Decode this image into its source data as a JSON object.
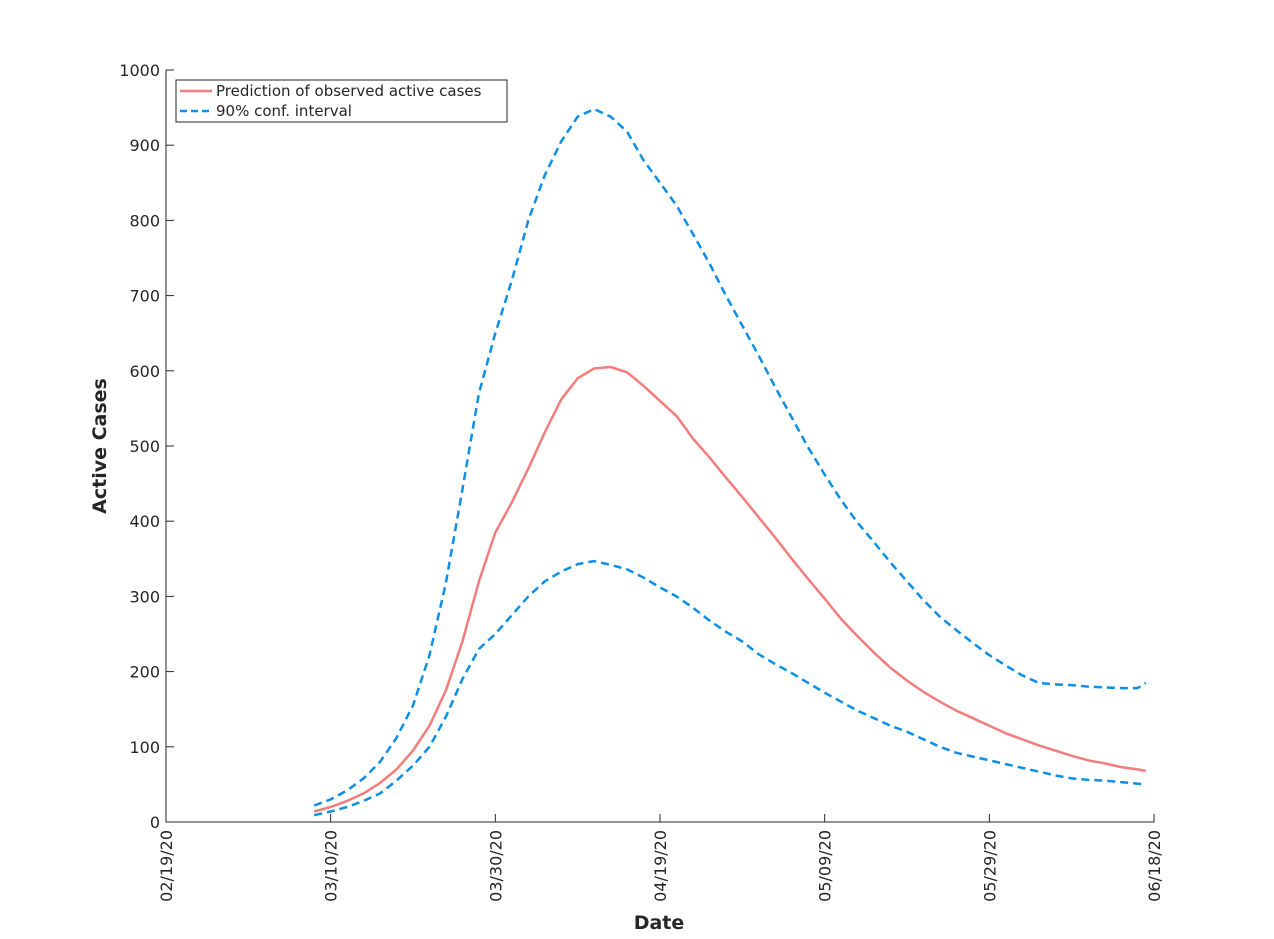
{
  "chart_data": {
    "type": "line",
    "title": "",
    "xlabel": "Date",
    "ylabel": "Active Cases",
    "ylim": [
      0,
      1000
    ],
    "xlim": [
      "02/19/20",
      "06/18/20"
    ],
    "yticks": [
      "0",
      "100",
      "200",
      "300",
      "400",
      "500",
      "600",
      "700",
      "800",
      "900",
      "1000"
    ],
    "xticks": [
      {
        "date": "2020-02-19",
        "label": "02/19/20"
      },
      {
        "date": "2020-03-10",
        "label": "03/10/20"
      },
      {
        "date": "2020-03-30",
        "label": "03/30/20"
      },
      {
        "date": "2020-04-19",
        "label": "04/19/20"
      },
      {
        "date": "2020-05-09",
        "label": "05/09/20"
      },
      {
        "date": "2020-05-29",
        "label": "05/29/20"
      },
      {
        "date": "2020-06-18",
        "label": "06/18/20"
      }
    ],
    "grid": false,
    "legend_position": "top-left",
    "x_dates": [
      "2020-03-08",
      "2020-03-10",
      "2020-03-12",
      "2020-03-14",
      "2020-03-16",
      "2020-03-18",
      "2020-03-20",
      "2020-03-22",
      "2020-03-24",
      "2020-03-26",
      "2020-03-28",
      "2020-03-30",
      "2020-04-01",
      "2020-04-03",
      "2020-04-05",
      "2020-04-07",
      "2020-04-09",
      "2020-04-11",
      "2020-04-13",
      "2020-04-15",
      "2020-04-17",
      "2020-04-19",
      "2020-04-21",
      "2020-04-23",
      "2020-04-25",
      "2020-04-27",
      "2020-04-29",
      "2020-05-01",
      "2020-05-03",
      "2020-05-05",
      "2020-05-07",
      "2020-05-09",
      "2020-05-11",
      "2020-05-13",
      "2020-05-15",
      "2020-05-17",
      "2020-05-19",
      "2020-05-21",
      "2020-05-23",
      "2020-05-25",
      "2020-05-27",
      "2020-05-29",
      "2020-05-31",
      "2020-06-02",
      "2020-06-04",
      "2020-06-06",
      "2020-06-08",
      "2020-06-10",
      "2020-06-12",
      "2020-06-14",
      "2020-06-16",
      "2020-06-17"
    ],
    "series": [
      {
        "name": "Prediction of observed active cases",
        "color": "#f47c7c",
        "style": "solid",
        "values": [
          14,
          20,
          28,
          38,
          52,
          70,
          95,
          128,
          175,
          240,
          320,
          385,
          425,
          470,
          518,
          562,
          590,
          603,
          605,
          598,
          580,
          560,
          540,
          510,
          485,
          458,
          432,
          405,
          378,
          350,
          323,
          297,
          270,
          247,
          225,
          205,
          188,
          173,
          160,
          148,
          138,
          128,
          118,
          110,
          102,
          95,
          88,
          82,
          78,
          73,
          70,
          68
        ]
      },
      {
        "name": "90% conf. interval",
        "color": "#0b8fe8",
        "style": "dashed",
        "values": [
          22,
          30,
          42,
          58,
          80,
          112,
          155,
          222,
          318,
          442,
          570,
          650,
          720,
          800,
          860,
          905,
          938,
          948,
          938,
          918,
          880,
          850,
          820,
          782,
          743,
          700,
          660,
          620,
          578,
          538,
          498,
          462,
          428,
          398,
          372,
          345,
          320,
          295,
          273,
          255,
          238,
          222,
          208,
          195,
          185,
          183,
          182,
          180,
          179,
          178,
          178,
          185
        ]
      },
      {
        "name": "",
        "legend": false,
        "color": "#0b8fe8",
        "style": "dashed",
        "values": [
          9,
          14,
          20,
          28,
          38,
          55,
          75,
          100,
          140,
          190,
          230,
          250,
          275,
          300,
          320,
          333,
          343,
          347,
          342,
          336,
          325,
          312,
          300,
          285,
          268,
          253,
          240,
          223,
          210,
          198,
          185,
          172,
          160,
          148,
          138,
          128,
          120,
          110,
          100,
          92,
          87,
          82,
          77,
          72,
          67,
          62,
          58,
          56,
          55,
          53,
          51,
          50
        ]
      }
    ]
  }
}
